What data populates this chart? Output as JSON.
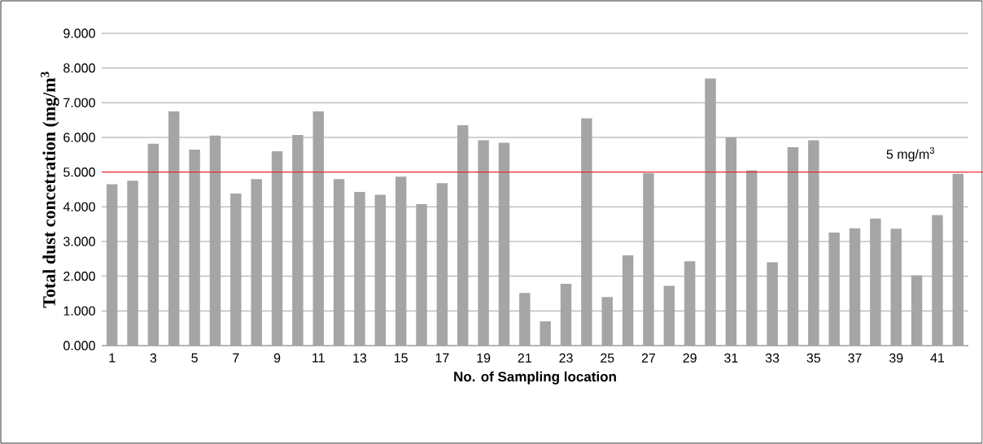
{
  "chart_data": {
    "type": "bar",
    "xlabel": "No. of Sampling location",
    "ylabel": "Total dust concetration (mg/m$^{3}$",
    "categories": [
      "1",
      null,
      "3",
      null,
      "5",
      null,
      "7",
      null,
      "9",
      null,
      "11",
      null,
      "13",
      null,
      "15",
      null,
      "17",
      null,
      "19",
      null,
      "21",
      null,
      "23",
      null,
      "25",
      null,
      "27",
      null,
      "29",
      null,
      "31",
      null,
      "33",
      null,
      "35",
      null,
      "37",
      null,
      "39",
      null,
      "41",
      null
    ],
    "values": [
      4.65,
      4.75,
      5.82,
      6.75,
      5.65,
      6.05,
      4.38,
      4.8,
      5.6,
      6.07,
      6.75,
      4.8,
      4.43,
      4.35,
      4.87,
      4.08,
      4.68,
      6.35,
      5.92,
      5.85,
      1.52,
      0.7,
      1.78,
      6.55,
      1.4,
      2.6,
      4.97,
      1.72,
      2.43,
      7.7,
      6.0,
      5.05,
      2.4,
      5.72,
      5.92,
      3.26,
      3.38,
      3.66,
      3.37,
      2.03,
      3.76,
      4.95
    ],
    "color": "#a5a5a5",
    "ylim": [
      0,
      9
    ],
    "yticks": [
      {
        "value": 0,
        "label": "0.000"
      },
      {
        "value": 1,
        "label": "1.000"
      },
      {
        "value": 2,
        "label": "2.000"
      },
      {
        "value": 3,
        "label": "3.000"
      },
      {
        "value": 4,
        "label": "4.000"
      },
      {
        "value": 5,
        "label": "5.000"
      },
      {
        "value": 6,
        "label": "6.000"
      },
      {
        "value": 7,
        "label": "7.000"
      },
      {
        "value": 8,
        "label": "8.000"
      },
      {
        "value": 9,
        "label": "9.000"
      }
    ],
    "grid": "y",
    "ref_lines": [
      {
        "axis": "y",
        "value": 5,
        "label": "5 mg/m$^{3}$",
        "color": "#ff0000"
      }
    ]
  }
}
